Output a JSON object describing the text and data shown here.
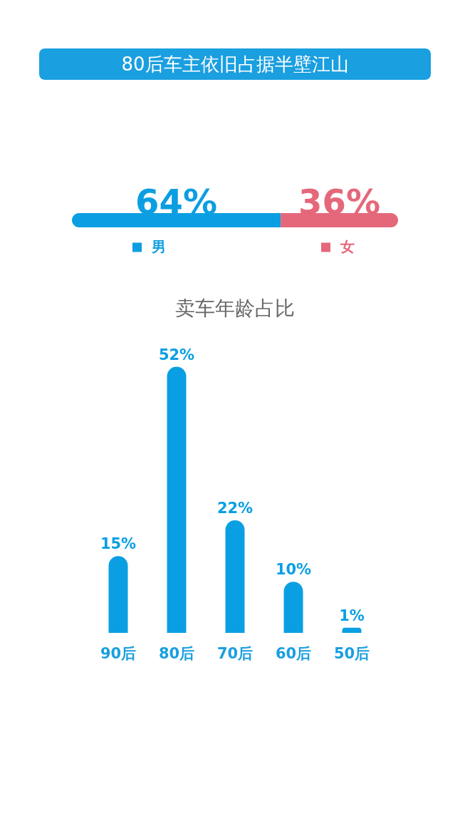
{
  "chart_data": [
    {
      "type": "bar",
      "orientation": "horizontal",
      "stacked": true,
      "title": "80后车主依旧占据半壁江山",
      "categories": [
        null
      ],
      "series": [
        {
          "name": "男",
          "color": "#0c9ee2",
          "values": [
            64
          ],
          "value_labels": [
            "64%"
          ]
        },
        {
          "name": "女",
          "color": "#e5687a",
          "values": [
            36
          ],
          "value_labels": [
            "36%"
          ]
        }
      ],
      "xlim": [
        0,
        100
      ],
      "tick_labels": false,
      "legend": "bottom"
    },
    {
      "type": "bar",
      "title": "卖车年龄占比",
      "categories": [
        "90后",
        "80后",
        "70后",
        "60后",
        "50后"
      ],
      "series": [
        {
          "color": "#0a9fe3",
          "values": [
            15,
            52,
            22,
            10,
            1
          ],
          "value_labels": [
            "15%",
            "52%",
            "22%",
            "10%",
            "1%"
          ]
        }
      ],
      "tick_labels": "x"
    }
  ]
}
